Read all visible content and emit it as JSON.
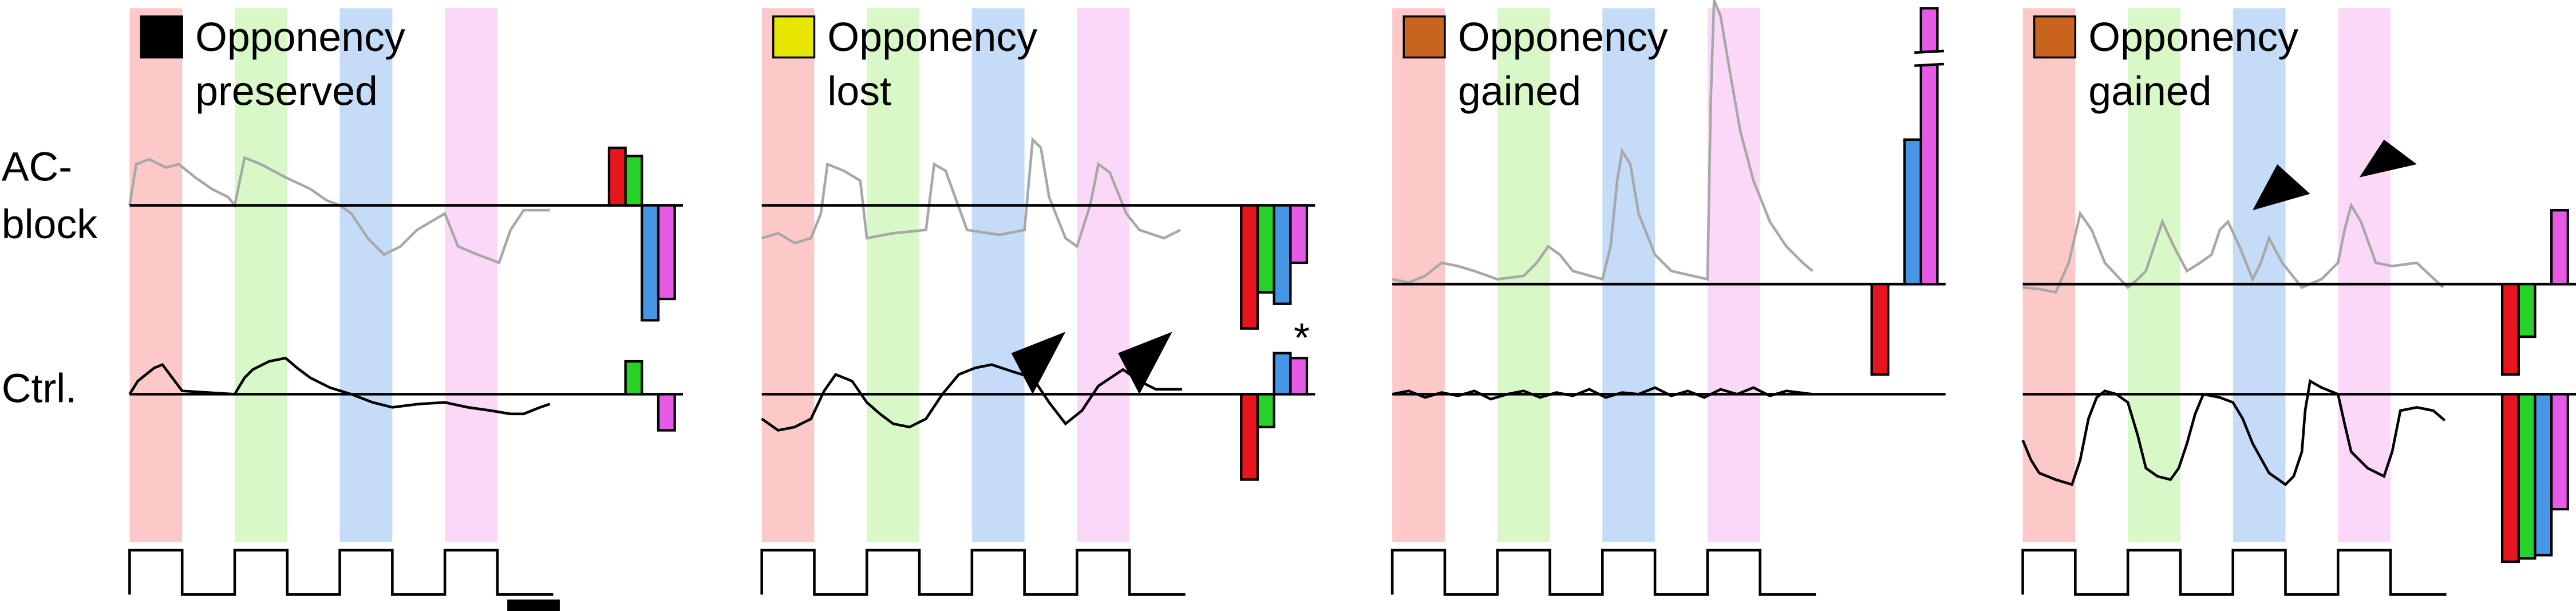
{
  "row_labels": {
    "ac_block": [
      "AC-",
      "block"
    ],
    "ctrl": "Ctrl."
  },
  "panels": [
    {
      "legend_color": "#000000",
      "label": [
        "Opponency",
        "preserved"
      ]
    },
    {
      "legend_color": "#e6e600",
      "label": [
        "Opponency",
        "lost"
      ]
    },
    {
      "legend_color": "#c8641e",
      "label": [
        "Opponency",
        "gained"
      ]
    },
    {
      "legend_color": "#c8641e",
      "label": [
        "Opponency",
        "gained"
      ]
    }
  ],
  "annotations": {
    "asterisk": "*"
  }
}
